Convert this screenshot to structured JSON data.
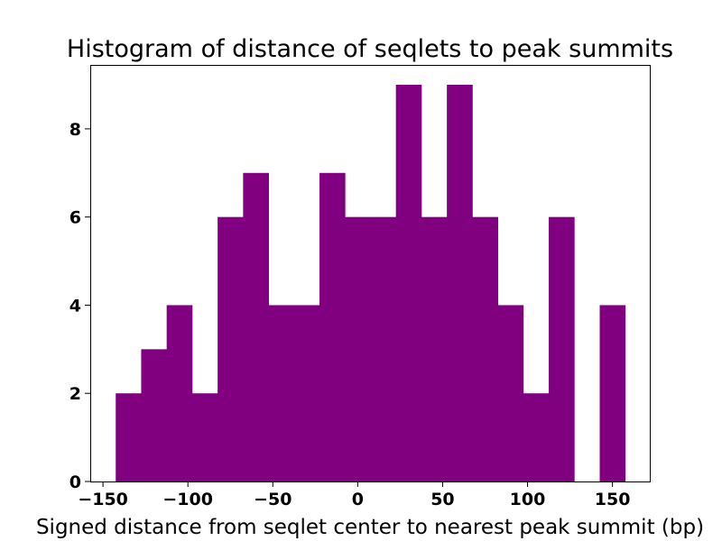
{
  "chart_data": {
    "type": "bar",
    "title": "Histogram of distance of seqlets to peak summits",
    "xlabel": "Signed distance from seqlet center to nearest peak summit (bp)",
    "ylabel": "",
    "xlim": [
      -157.5,
      172
    ],
    "ylim": [
      0,
      9.45
    ],
    "xticks": [
      -150,
      -100,
      -50,
      0,
      50,
      100,
      150
    ],
    "xtick_labels": [
      "−150",
      "−100",
      "−50",
      "0",
      "50",
      "100",
      "150"
    ],
    "yticks": [
      0,
      2,
      4,
      6,
      8
    ],
    "ytick_labels": [
      "0",
      "2",
      "4",
      "6",
      "8"
    ],
    "grid": false,
    "legend": "none",
    "color": "#800080",
    "bins": [
      {
        "start": -142.5,
        "end": -127.5,
        "count": 2
      },
      {
        "start": -127.5,
        "end": -112.5,
        "count": 3
      },
      {
        "start": -112.5,
        "end": -97.5,
        "count": 4
      },
      {
        "start": -97.5,
        "end": -82.5,
        "count": 2
      },
      {
        "start": -82.5,
        "end": -67.5,
        "count": 6
      },
      {
        "start": -67.5,
        "end": -52.5,
        "count": 7
      },
      {
        "start": -52.5,
        "end": -37.5,
        "count": 4
      },
      {
        "start": -37.5,
        "end": -22.5,
        "count": 4
      },
      {
        "start": -22.5,
        "end": -7.5,
        "count": 7
      },
      {
        "start": -7.5,
        "end": 7.5,
        "count": 6
      },
      {
        "start": 7.5,
        "end": 22.5,
        "count": 6
      },
      {
        "start": 22.5,
        "end": 37.5,
        "count": 9
      },
      {
        "start": 37.5,
        "end": 52.5,
        "count": 6
      },
      {
        "start": 52.5,
        "end": 67.5,
        "count": 9
      },
      {
        "start": 67.5,
        "end": 82.5,
        "count": 6
      },
      {
        "start": 82.5,
        "end": 97.5,
        "count": 4
      },
      {
        "start": 97.5,
        "end": 112.5,
        "count": 2
      },
      {
        "start": 112.5,
        "end": 127.5,
        "count": 6
      },
      {
        "start": 127.5,
        "end": 142.5,
        "count": 0
      },
      {
        "start": 142.5,
        "end": 157.5,
        "count": 4
      }
    ]
  }
}
